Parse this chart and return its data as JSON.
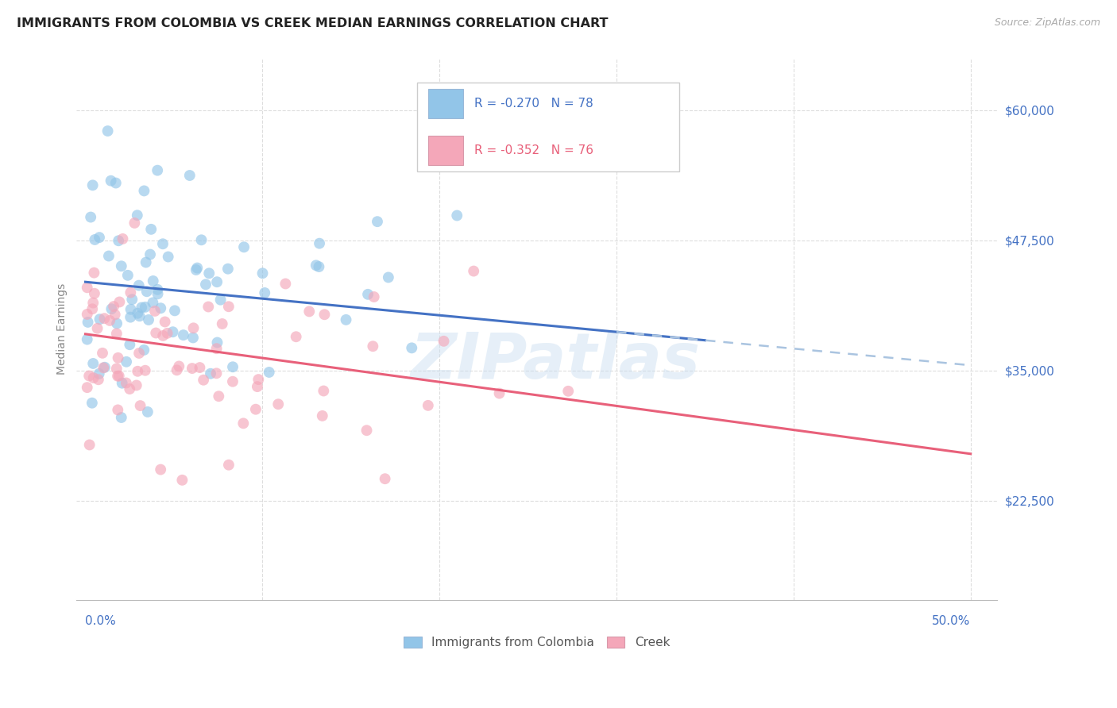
{
  "title": "IMMIGRANTS FROM COLOMBIA VS CREEK MEDIAN EARNINGS CORRELATION CHART",
  "source": "Source: ZipAtlas.com",
  "ylabel": "Median Earnings",
  "y_ticks": [
    22500,
    35000,
    47500,
    60000
  ],
  "y_tick_labels": [
    "$22,500",
    "$35,000",
    "$47,500",
    "$60,000"
  ],
  "y_range": [
    13000,
    65000
  ],
  "x_range": [
    -0.005,
    0.515
  ],
  "legend_r1": "R = -0.270",
  "legend_n1": "N = 78",
  "legend_r2": "R = -0.352",
  "legend_n2": "N = 76",
  "color_colombia": "#92c5e8",
  "color_creek": "#f4a7b9",
  "color_colombia_line": "#4472c4",
  "color_creek_line": "#e8607a",
  "color_dashed": "#aac4e0",
  "color_grid": "#dddddd",
  "color_title": "#222222",
  "color_source": "#aaaaaa",
  "color_ylabel": "#888888",
  "color_ytick": "#4472c4",
  "color_xtick": "#4472c4",
  "watermark": "ZIPatlas",
  "blue_line_x0": 0.0,
  "blue_line_y0": 43500,
  "blue_line_x1": 0.5,
  "blue_line_y1": 35500,
  "pink_line_x0": 0.0,
  "pink_line_y0": 38500,
  "pink_line_x1": 0.5,
  "pink_line_y1": 27000,
  "dash_line_x0": 0.3,
  "dash_line_y0": 37200,
  "dash_line_x1": 0.5,
  "dash_line_y1": 33800
}
